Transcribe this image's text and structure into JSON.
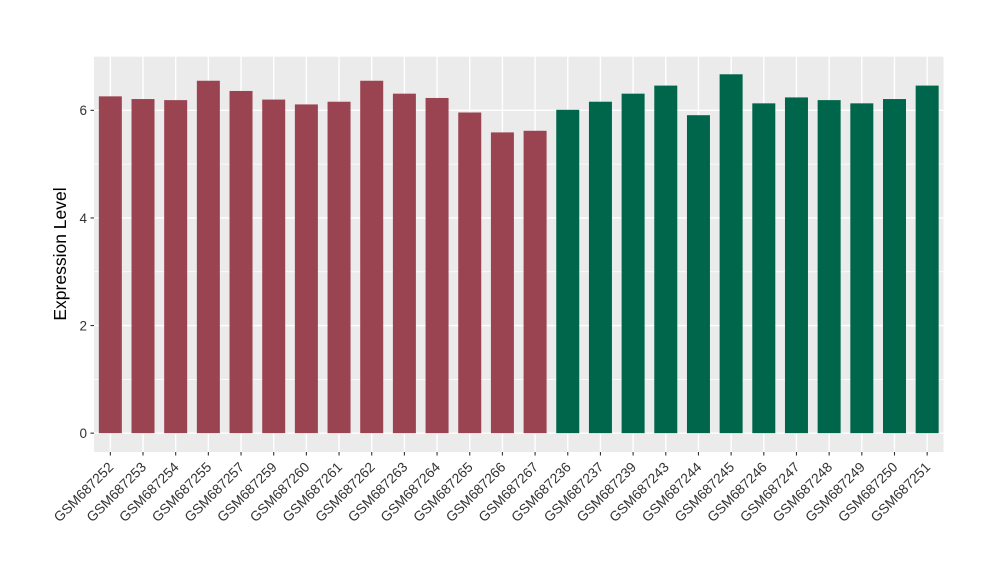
{
  "chart_data": {
    "type": "bar",
    "title": "",
    "xlabel": "",
    "ylabel": "Expression Level",
    "categories": [
      "GSM687252",
      "GSM687253",
      "GSM687254",
      "GSM687255",
      "GSM687257",
      "GSM687259",
      "GSM687260",
      "GSM687261",
      "GSM687262",
      "GSM687263",
      "GSM687264",
      "GSM687265",
      "GSM687266",
      "GSM687267",
      "GSM687236",
      "GSM687237",
      "GSM687239",
      "GSM687243",
      "GSM687244",
      "GSM687245",
      "GSM687246",
      "GSM687247",
      "GSM687248",
      "GSM687249",
      "GSM687250",
      "GSM687251"
    ],
    "values": [
      6.26,
      6.21,
      6.19,
      6.55,
      6.36,
      6.2,
      6.11,
      6.16,
      6.55,
      6.31,
      6.23,
      5.96,
      5.59,
      5.62,
      6.01,
      6.16,
      6.31,
      6.46,
      5.91,
      6.67,
      6.13,
      6.24,
      6.19,
      6.13,
      6.21,
      6.46
    ],
    "groups": [
      "group1",
      "group1",
      "group1",
      "group1",
      "group1",
      "group1",
      "group1",
      "group1",
      "group1",
      "group1",
      "group1",
      "group1",
      "group1",
      "group1",
      "group2",
      "group2",
      "group2",
      "group2",
      "group2",
      "group2",
      "group2",
      "group2",
      "group2",
      "group2",
      "group2",
      "group2"
    ],
    "group_colors": {
      "group1": "#9B4451",
      "group2": "#00664B"
    },
    "yticks": [
      0,
      2,
      4,
      6
    ],
    "minor_yticks": [
      1,
      3,
      5,
      7
    ],
    "ylim": [
      -0.35,
      7.01
    ],
    "grid": true,
    "legend": "none",
    "x_label_angle_deg": 45,
    "colors": {
      "page_bg": "#FFFFFF",
      "panel_bg": "#EBEBEB",
      "grid": "#FFFFFF",
      "axis_text": "#333333",
      "axis_title": "#000000",
      "tick": "#333333"
    }
  }
}
